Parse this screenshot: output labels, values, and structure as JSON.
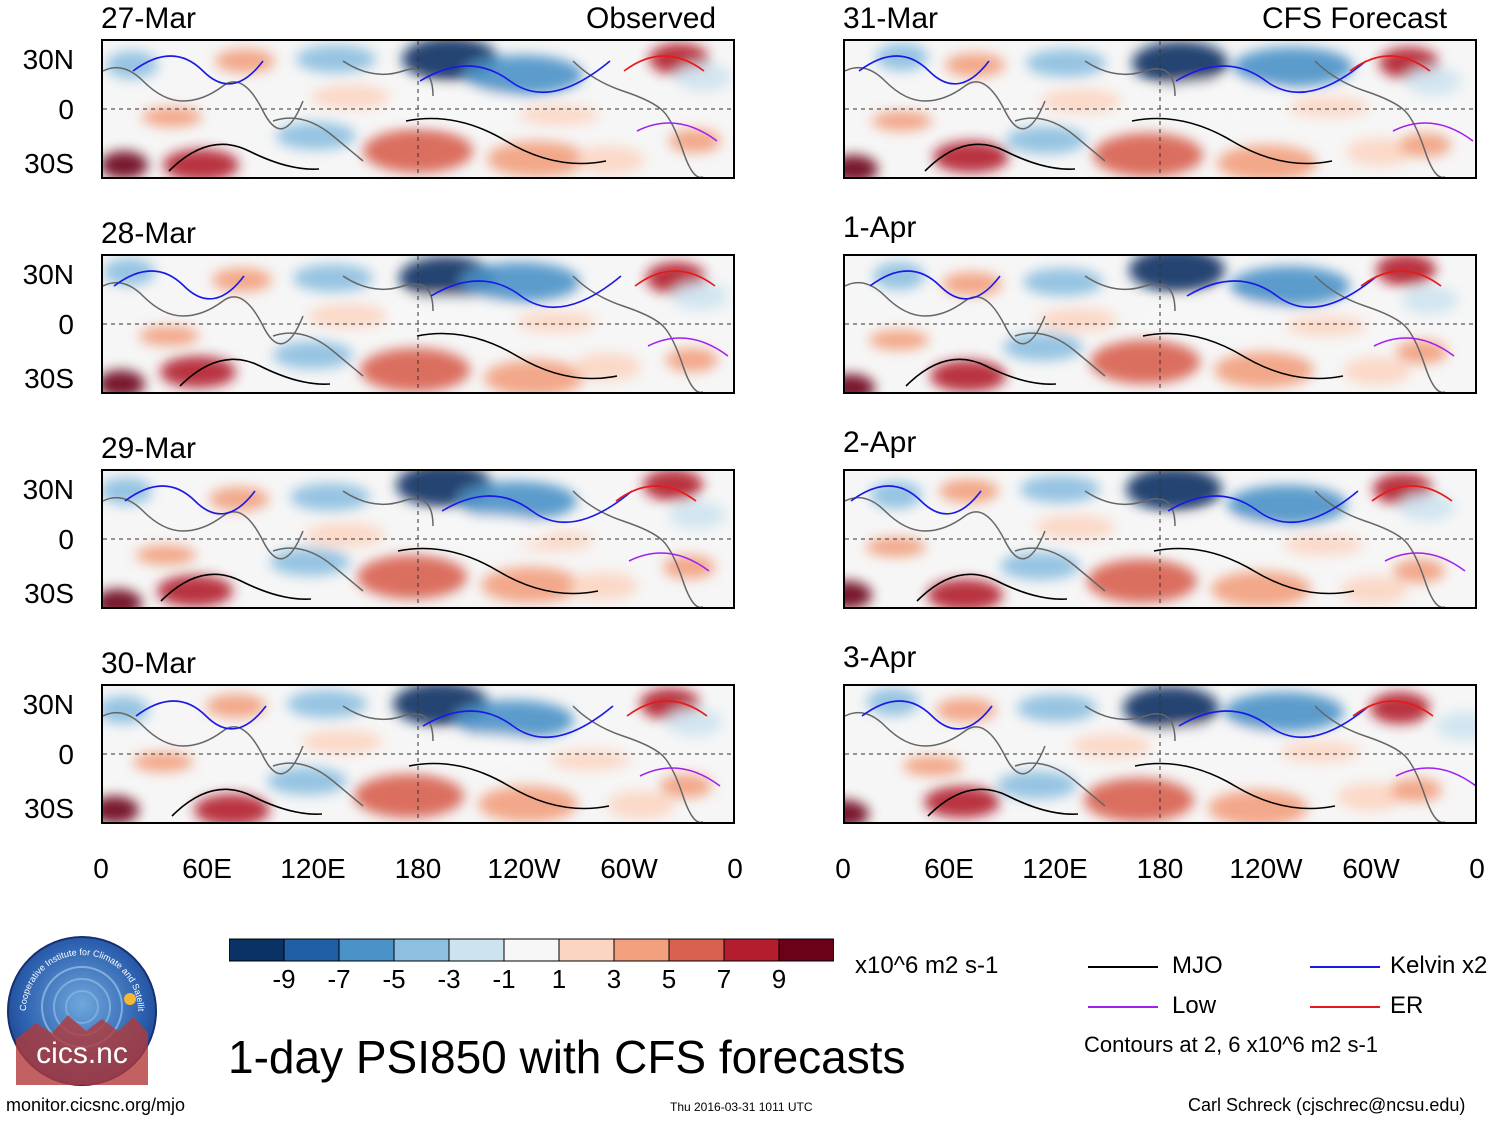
{
  "headers": {
    "left": "Observed",
    "right": "CFS Forecast"
  },
  "left_dates": [
    "27-Mar",
    "28-Mar",
    "29-Mar",
    "30-Mar"
  ],
  "right_dates": [
    "31-Mar",
    "1-Apr",
    "2-Apr",
    "3-Apr"
  ],
  "lat_labels": [
    "30N",
    "0",
    "30S"
  ],
  "lon_labels": [
    "0",
    "60E",
    "120E",
    "180",
    "120W",
    "60W",
    "0"
  ],
  "colorbar": {
    "ticks": [
      "-9",
      "-7",
      "-5",
      "-3",
      "-1",
      "1",
      "3",
      "5",
      "7",
      "9"
    ],
    "colors": [
      "#0b3264",
      "#1f5fa6",
      "#4a92c8",
      "#8cbfe0",
      "#cde3f0",
      "#f7f7f7",
      "#fcd5c2",
      "#f2a07e",
      "#d8604f",
      "#b31d2e",
      "#6b0019"
    ],
    "units": "x10^6 m2 s-1"
  },
  "legend": {
    "items": [
      {
        "label": "MJO",
        "color": "#000000"
      },
      {
        "label": "Kelvin x2",
        "color": "#1a1ae6"
      },
      {
        "label": "Low",
        "color": "#a020f0"
      },
      {
        "label": "ER",
        "color": "#e61a1a"
      }
    ],
    "contours_note": "Contours at 2, 6 x10^6 m2 s-1"
  },
  "title": "1-day PSI850 with CFS forecasts",
  "logo_text": "cics.nc",
  "logo_ring_text": "Cooperative Institute for Climate and Satellites",
  "footer": {
    "url": "monitor.cicsnc.org/mjo",
    "timestamp": "Thu 2016-03-31 1011 UTC",
    "author": "Carl Schreck (cjschrec@ncsu.edu)"
  }
}
